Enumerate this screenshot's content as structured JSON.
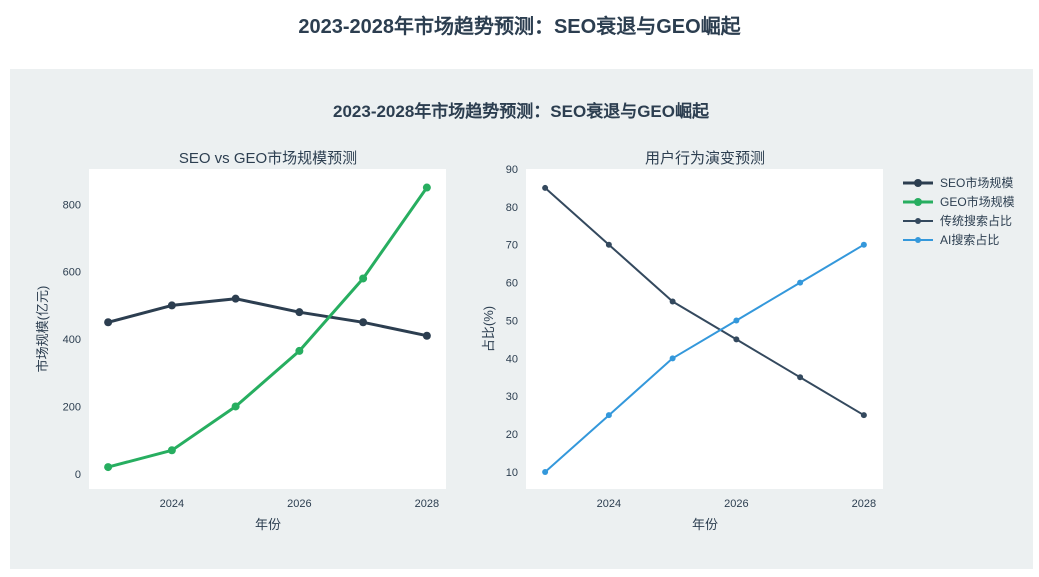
{
  "page": {
    "title": "2023-2028年市场趋势预测：SEO衰退与GEO崛起"
  },
  "chart_data": [
    {
      "type": "line",
      "figure_title": "2023-2028年市场趋势预测：SEO衰退与GEO崛起",
      "title": "SEO vs GEO市场规模预测",
      "xlabel": "年份",
      "ylabel": "市场规模(亿元)",
      "x": [
        2023,
        2024,
        2025,
        2026,
        2027,
        2028
      ],
      "xticks": [
        "2024",
        "2026",
        "2028"
      ],
      "xtick_values": [
        2024,
        2026,
        2028
      ],
      "yticks": [
        "0",
        "200",
        "400",
        "600",
        "800"
      ],
      "ytick_values": [
        0,
        200,
        400,
        600,
        800
      ],
      "xlim": [
        2022.7,
        2028.3
      ],
      "ylim": [
        -45,
        905
      ],
      "series": [
        {
          "name": "SEO市场规模",
          "color": "#2c3e50",
          "values": [
            450,
            500,
            520,
            480,
            450,
            410
          ]
        },
        {
          "name": "GEO市场规模",
          "color": "#27ae60",
          "values": [
            20,
            70,
            200,
            365,
            580,
            850
          ]
        }
      ]
    },
    {
      "type": "line",
      "title": "用户行为演变预测",
      "xlabel": "年份",
      "ylabel": "占比(%)",
      "x": [
        2023,
        2024,
        2025,
        2026,
        2027,
        2028
      ],
      "xticks": [
        "2024",
        "2026",
        "2028"
      ],
      "xtick_values": [
        2024,
        2026,
        2028
      ],
      "yticks": [
        "10",
        "20",
        "30",
        "40",
        "50",
        "60",
        "70",
        "80",
        "90"
      ],
      "ytick_values": [
        10,
        20,
        30,
        40,
        50,
        60,
        70,
        80,
        90
      ],
      "xlim": [
        2022.7,
        2028.3
      ],
      "ylim": [
        5.5,
        90
      ],
      "series": [
        {
          "name": "传统搜索占比",
          "color": "#34495e",
          "values": [
            85,
            70,
            55,
            45,
            35,
            25
          ]
        },
        {
          "name": "AI搜索占比",
          "color": "#3498db",
          "values": [
            10,
            25,
            40,
            50,
            60,
            70
          ]
        }
      ]
    }
  ],
  "legend": {
    "placement": "right",
    "items": [
      {
        "label": "SEO市场规模",
        "color": "#2c3e50"
      },
      {
        "label": "GEO市场规模",
        "color": "#27ae60"
      },
      {
        "label": "传统搜索占比",
        "color": "#34495e"
      },
      {
        "label": "AI搜索占比",
        "color": "#3498db"
      }
    ]
  }
}
